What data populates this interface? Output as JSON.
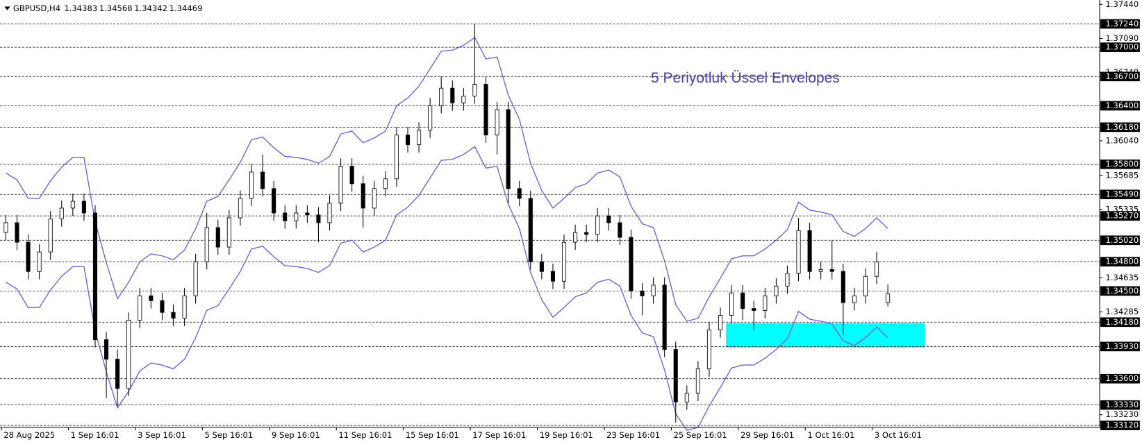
{
  "chart_data": {
    "type": "candlestick",
    "symbol": "GBPUSD,H4",
    "annotation": "5 Periyotluk Üssel Envelopes",
    "up_color": "#ffffff",
    "down_color": "#000000",
    "envelope_color": "#7060d8",
    "ylim": [
      1.331,
      1.3747
    ],
    "yticks": [
      {
        "value": 1.3744,
        "label": "1.37440"
      },
      {
        "value": 1.3709,
        "label": "1.37090"
      },
      {
        "value": 1.3674,
        "label": "1.36740"
      },
      {
        "value": 1.3604,
        "label": "1.36040"
      },
      {
        "value": 1.35685,
        "label": "1.35685"
      },
      {
        "value": 1.35335,
        "label": "1.35335"
      },
      {
        "value": 1.34635,
        "label": "1.34635"
      },
      {
        "value": 1.34285,
        "label": "1.34285"
      },
      {
        "value": 1.3323,
        "label": "1.33230"
      }
    ],
    "levels": [
      {
        "value": 1.3724,
        "label": "1.37240"
      },
      {
        "value": 1.37,
        "label": "1.37000"
      },
      {
        "value": 1.367,
        "label": "1.36700"
      },
      {
        "value": 1.364,
        "label": "1.36400"
      },
      {
        "value": 1.3618,
        "label": "1.36180"
      },
      {
        "value": 1.358,
        "label": "1.35800"
      },
      {
        "value": 1.3549,
        "label": "1.35490"
      },
      {
        "value": 1.3527,
        "label": "1.35270"
      },
      {
        "value": 1.3502,
        "label": "1.35020"
      },
      {
        "value": 1.348,
        "label": "1.34800"
      },
      {
        "value": 1.345,
        "label": "1.34500"
      },
      {
        "value": 1.3418,
        "label": "1.34180"
      },
      {
        "value": 1.3393,
        "label": "1.33930"
      },
      {
        "value": 1.336,
        "label": "1.33600"
      },
      {
        "value": 1.3333,
        "label": "1.33330"
      },
      {
        "value": 1.3312,
        "label": "1.33120"
      }
    ],
    "zone": {
      "start": 64.5,
      "end": 82.3,
      "high": 1.3417,
      "low": 1.3392,
      "color": "#00ffff"
    },
    "categories": [
      "28 Aug 2025",
      null,
      null,
      null,
      null,
      null,
      "1 Sep 16:01",
      null,
      null,
      null,
      null,
      null,
      "3 Sep 16:01",
      null,
      null,
      null,
      null,
      null,
      "5 Sep 16:01",
      null,
      null,
      null,
      null,
      null,
      "9 Sep 16:01",
      null,
      null,
      null,
      null,
      null,
      "11 Sep 16:01",
      null,
      null,
      null,
      null,
      null,
      "15 Sep 16:01",
      null,
      null,
      null,
      null,
      null,
      "17 Sep 16:01",
      null,
      null,
      null,
      null,
      null,
      "19 Sep 16:01",
      null,
      null,
      null,
      null,
      null,
      "23 Sep 16:01",
      null,
      null,
      null,
      null,
      null,
      "25 Sep 16:01",
      null,
      null,
      null,
      null,
      null,
      "29 Sep 16:01",
      null,
      null,
      null,
      null,
      null,
      "1 Oct 16:01",
      null,
      null,
      null,
      null,
      null,
      "3 Oct 16:01",
      null
    ],
    "candles": [
      [
        1.351,
        1.3528,
        1.3502,
        1.352
      ],
      [
        1.352,
        1.3528,
        1.3492,
        1.35
      ],
      [
        1.35,
        1.3508,
        1.3462,
        1.347
      ],
      [
        1.347,
        1.3498,
        1.3462,
        1.349
      ],
      [
        1.349,
        1.3532,
        1.3482,
        1.3524
      ],
      [
        1.3524,
        1.3543,
        1.3516,
        1.3535
      ],
      [
        1.3535,
        1.355,
        1.3527,
        1.3542
      ],
      [
        1.3542,
        1.355,
        1.3522,
        1.353
      ],
      [
        1.353,
        1.3538,
        1.3392,
        1.34
      ],
      [
        1.34,
        1.3408,
        1.334,
        1.338
      ],
      [
        1.338,
        1.339,
        1.3332,
        1.335
      ],
      [
        1.335,
        1.3428,
        1.3342,
        1.342
      ],
      [
        1.342,
        1.3453,
        1.3412,
        1.3445
      ],
      [
        1.3445,
        1.3453,
        1.3432,
        1.344
      ],
      [
        1.344,
        1.3448,
        1.342,
        1.3428
      ],
      [
        1.3428,
        1.3436,
        1.3414,
        1.3422
      ],
      [
        1.3422,
        1.3453,
        1.3414,
        1.3445
      ],
      [
        1.3445,
        1.3488,
        1.3437,
        1.348
      ],
      [
        1.348,
        1.353,
        1.3472,
        1.3515
      ],
      [
        1.3515,
        1.3523,
        1.3487,
        1.3495
      ],
      [
        1.3495,
        1.3533,
        1.3487,
        1.3525
      ],
      [
        1.3525,
        1.3553,
        1.3517,
        1.3545
      ],
      [
        1.3545,
        1.358,
        1.3537,
        1.3572
      ],
      [
        1.3572,
        1.359,
        1.3547,
        1.3555
      ],
      [
        1.3555,
        1.3563,
        1.3522,
        1.353
      ],
      [
        1.353,
        1.3538,
        1.3514,
        1.3522
      ],
      [
        1.3522,
        1.3538,
        1.3514,
        1.353
      ],
      [
        1.353,
        1.3538,
        1.352,
        1.3528
      ],
      [
        1.3528,
        1.3536,
        1.35,
        1.352
      ],
      [
        1.352,
        1.3548,
        1.3512,
        1.354
      ],
      [
        1.354,
        1.3586,
        1.3532,
        1.3578
      ],
      [
        1.3578,
        1.3586,
        1.3552,
        1.356
      ],
      [
        1.356,
        1.3568,
        1.3515,
        1.3535
      ],
      [
        1.3535,
        1.3563,
        1.3527,
        1.3555
      ],
      [
        1.3555,
        1.3573,
        1.3547,
        1.3565
      ],
      [
        1.3565,
        1.3618,
        1.3557,
        1.361
      ],
      [
        1.361,
        1.3618,
        1.3592,
        1.36
      ],
      [
        1.36,
        1.3623,
        1.3592,
        1.3615
      ],
      [
        1.3615,
        1.3648,
        1.3607,
        1.364
      ],
      [
        1.364,
        1.367,
        1.3632,
        1.3658
      ],
      [
        1.3658,
        1.3666,
        1.3635,
        1.3643
      ],
      [
        1.3643,
        1.3658,
        1.3635,
        1.365
      ],
      [
        1.365,
        1.3724,
        1.3642,
        1.3662
      ],
      [
        1.3662,
        1.367,
        1.3602,
        1.361
      ],
      [
        1.361,
        1.3644,
        1.359,
        1.3636
      ],
      [
        1.3636,
        1.3644,
        1.354,
        1.3555
      ],
      [
        1.3555,
        1.3563,
        1.3537,
        1.3545
      ],
      [
        1.3545,
        1.3553,
        1.3472,
        1.348
      ],
      [
        1.348,
        1.3488,
        1.3462,
        1.347
      ],
      [
        1.347,
        1.3478,
        1.3452,
        1.346
      ],
      [
        1.346,
        1.3508,
        1.3452,
        1.35
      ],
      [
        1.35,
        1.3518,
        1.3492,
        1.351
      ],
      [
        1.351,
        1.3518,
        1.35,
        1.3508
      ],
      [
        1.3508,
        1.3535,
        1.35,
        1.3527
      ],
      [
        1.3527,
        1.3535,
        1.3512,
        1.352
      ],
      [
        1.352,
        1.3528,
        1.3497,
        1.3505
      ],
      [
        1.3505,
        1.3513,
        1.3442,
        1.345
      ],
      [
        1.345,
        1.3458,
        1.3425,
        1.3445
      ],
      [
        1.3445,
        1.3464,
        1.3437,
        1.3456
      ],
      [
        1.3456,
        1.3464,
        1.3382,
        1.339
      ],
      [
        1.339,
        1.3398,
        1.3315,
        1.3336
      ],
      [
        1.3336,
        1.3353,
        1.3328,
        1.3345
      ],
      [
        1.3345,
        1.3378,
        1.3337,
        1.337
      ],
      [
        1.337,
        1.3418,
        1.3362,
        1.341
      ],
      [
        1.341,
        1.3433,
        1.3402,
        1.3425
      ],
      [
        1.3425,
        1.3456,
        1.3417,
        1.3448
      ],
      [
        1.3448,
        1.3456,
        1.342,
        1.3432
      ],
      [
        1.3432,
        1.344,
        1.341,
        1.343
      ],
      [
        1.343,
        1.3453,
        1.3422,
        1.3445
      ],
      [
        1.3445,
        1.3463,
        1.3437,
        1.3455
      ],
      [
        1.3455,
        1.3476,
        1.3447,
        1.3468
      ],
      [
        1.3468,
        1.3525,
        1.346,
        1.3512
      ],
      [
        1.3512,
        1.352,
        1.3462,
        1.347
      ],
      [
        1.347,
        1.348,
        1.3462,
        1.3472
      ],
      [
        1.3472,
        1.3502,
        1.3462,
        1.347
      ],
      [
        1.347,
        1.3478,
        1.3405,
        1.3438
      ],
      [
        1.3438,
        1.3453,
        1.343,
        1.3445
      ],
      [
        1.3445,
        1.3473,
        1.3437,
        1.3465
      ],
      [
        1.3465,
        1.349,
        1.3457,
        1.348
      ],
      [
        1.34383,
        1.34568,
        1.34342,
        1.34469
      ]
    ],
    "envelope_upper": [
      1.3571,
      1.3564,
      1.3545,
      1.3545,
      1.3563,
      1.3577,
      1.3587,
      1.3587,
      1.3521,
      1.3479,
      1.3442,
      1.3459,
      1.348,
      1.3488,
      1.3486,
      1.3482,
      1.3492,
      1.3514,
      1.3542,
      1.3547,
      1.3564,
      1.3582,
      1.3605,
      1.3608,
      1.3597,
      1.3588,
      1.3587,
      1.3585,
      1.3581,
      1.3588,
      1.3611,
      1.3614,
      1.3602,
      1.3607,
      1.3614,
      1.364,
      1.3648,
      1.366,
      1.3678,
      1.3696,
      1.3697,
      1.3702,
      1.371,
      1.3688,
      1.369,
      1.3651,
      1.3626,
      1.3581,
      1.3553,
      1.3535,
      1.3545,
      1.3556,
      1.356,
      1.3571,
      1.3574,
      1.3567,
      1.3537,
      1.3519,
      1.3515,
      1.3481,
      1.3436,
      1.3419,
      1.3422,
      1.3444,
      1.3463,
      1.3483,
      1.3486,
      1.3486,
      1.3493,
      1.3502,
      1.3513,
      1.3541,
      1.3533,
      1.3531,
      1.3528,
      1.3511,
      1.3506,
      1.3514,
      1.3525,
      1.3514
    ],
    "envelope_lower": [
      1.3459,
      1.3452,
      1.3433,
      1.3433,
      1.3451,
      1.3465,
      1.3475,
      1.3475,
      1.3409,
      1.3367,
      1.333,
      1.3347,
      1.3368,
      1.3376,
      1.3374,
      1.337,
      1.338,
      1.3402,
      1.343,
      1.3435,
      1.3452,
      1.347,
      1.3493,
      1.3496,
      1.3485,
      1.3476,
      1.3475,
      1.3473,
      1.3469,
      1.3476,
      1.3499,
      1.3502,
      1.349,
      1.3495,
      1.3502,
      1.3528,
      1.3536,
      1.3548,
      1.3566,
      1.3584,
      1.3585,
      1.359,
      1.3598,
      1.3576,
      1.3578,
      1.3539,
      1.3514,
      1.3469,
      1.3441,
      1.3423,
      1.3433,
      1.3444,
      1.3448,
      1.3459,
      1.3462,
      1.3455,
      1.3425,
      1.3407,
      1.3403,
      1.3369,
      1.3324,
      1.3307,
      1.331,
      1.3332,
      1.3351,
      1.3371,
      1.3374,
      1.3374,
      1.3381,
      1.339,
      1.3401,
      1.3429,
      1.3421,
      1.3419,
      1.3416,
      1.3399,
      1.3394,
      1.3402,
      1.3413,
      1.3402
    ]
  }
}
